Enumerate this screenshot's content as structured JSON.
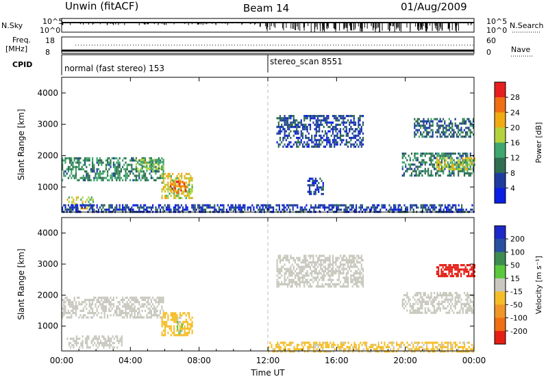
{
  "header": {
    "station": "Unwin (fitACF)",
    "beam": "Beam 14",
    "date": "01/Aug/2009"
  },
  "strips": {
    "nsky_label": "N.Sky",
    "nsky_ticks": [
      "10^5",
      "10^0"
    ],
    "nsearch_label": "N.Search",
    "nsearch_ticks": [
      "10^5",
      "10^0"
    ],
    "freq_label_1": "Freq.",
    "freq_label_2": "[MHz]",
    "freq_ticks": [
      "18",
      "8"
    ],
    "nave_label": "Nave",
    "nave_ticks": [
      "60",
      "0"
    ],
    "cpid_label": "CPID",
    "cpid_segments": [
      {
        "name": "normal (fast stereo) 153",
        "start_hour": 0
      },
      {
        "name": "stereo_scan 8551",
        "start_hour": 12
      }
    ]
  },
  "colors": {
    "power": [
      "#0a1ee6",
      "#1e3ca0",
      "#2f6e50",
      "#3fa66e",
      "#b4d23c",
      "#f0aa14",
      "#f06e14",
      "#e61e1e"
    ],
    "velocity": [
      "#1e28c8",
      "#2850a0",
      "#3c8c50",
      "#5ac83c",
      "#c8c8be",
      "#f5be28",
      "#f09628",
      "#f06e14",
      "#e61e14"
    ],
    "grid": "#bbbbbb"
  },
  "chart_data": [
    {
      "type": "heatmap",
      "title": "",
      "xlabel": "Time UT",
      "ylabel": "Slant Range [km]",
      "xlim": [
        0,
        24
      ],
      "ylim": [
        200,
        4500
      ],
      "x_ticks": [
        "00:00",
        "04:00",
        "08:00",
        "12:00",
        "16:00",
        "20:00",
        "00:00"
      ],
      "y_ticks": [
        "1000",
        "2000",
        "3000",
        "4000"
      ],
      "colorbar_label": "Power [dB]",
      "colorbar_ticks": [
        "4",
        "8",
        "12",
        "16",
        "20",
        "24",
        "28"
      ],
      "colorbar_range": [
        0,
        30
      ],
      "regions": [
        {
          "t0": 0.0,
          "t1": 5.9,
          "r0": 1250,
          "r1": 1950,
          "value": 11
        },
        {
          "t0": 4.3,
          "t1": 5.9,
          "r0": 1500,
          "r1": 1900,
          "value": 15
        },
        {
          "t0": 5.8,
          "t1": 7.6,
          "r0": 650,
          "r1": 1450,
          "value": 18
        },
        {
          "t0": 6.3,
          "t1": 7.2,
          "r0": 800,
          "r1": 1200,
          "value": 24
        },
        {
          "t0": 0.3,
          "t1": 1.8,
          "r0": 300,
          "r1": 700,
          "value": 16
        },
        {
          "t0": 0.0,
          "t1": 24.0,
          "r0": 200,
          "r1": 450,
          "value": 5
        },
        {
          "t0": 12.5,
          "t1": 17.5,
          "r0": 2300,
          "r1": 3300,
          "value": 6
        },
        {
          "t0": 14.3,
          "t1": 15.2,
          "r0": 800,
          "r1": 1300,
          "value": 5
        },
        {
          "t0": 19.8,
          "t1": 24.0,
          "r0": 1400,
          "r1": 2100,
          "value": 10
        },
        {
          "t0": 21.8,
          "t1": 24.0,
          "r0": 1550,
          "r1": 1950,
          "value": 17
        },
        {
          "t0": 20.5,
          "t1": 24.0,
          "r0": 2600,
          "r1": 3200,
          "value": 8
        }
      ]
    },
    {
      "type": "heatmap",
      "title": "",
      "xlabel": "Time UT",
      "ylabel": "Slant Range [km]",
      "xlim": [
        0,
        24
      ],
      "ylim": [
        200,
        4500
      ],
      "x_ticks": [
        "00:00",
        "04:00",
        "08:00",
        "12:00",
        "16:00",
        "20:00",
        "00:00"
      ],
      "y_ticks": [
        "1000",
        "2000",
        "3000",
        "4000"
      ],
      "colorbar_label": "Velocity [m s⁻¹]",
      "colorbar_ticks": [
        "200",
        "100",
        "50",
        "15",
        "-15",
        "-50",
        "-100",
        "-200"
      ],
      "colorbar_range": [
        -250,
        250
      ],
      "regions": [
        {
          "t0": 0.0,
          "t1": 5.9,
          "r0": 1250,
          "r1": 1950,
          "value": 0
        },
        {
          "t0": 5.8,
          "t1": 7.6,
          "r0": 700,
          "r1": 1450,
          "value": -60
        },
        {
          "t0": 6.7,
          "t1": 7.0,
          "r0": 800,
          "r1": 1300,
          "value": 30
        },
        {
          "t0": 0.3,
          "t1": 3.5,
          "r0": 300,
          "r1": 700,
          "value": 0
        },
        {
          "t0": 12.0,
          "t1": 24.0,
          "r0": 200,
          "r1": 500,
          "value": -40
        },
        {
          "t0": 12.5,
          "t1": 17.5,
          "r0": 2300,
          "r1": 3300,
          "value": 0
        },
        {
          "t0": 19.8,
          "t1": 24.0,
          "r0": 1400,
          "r1": 2100,
          "value": 0
        },
        {
          "t0": 21.8,
          "t1": 24.0,
          "r0": 2600,
          "r1": 3000,
          "value": -220
        }
      ]
    }
  ]
}
